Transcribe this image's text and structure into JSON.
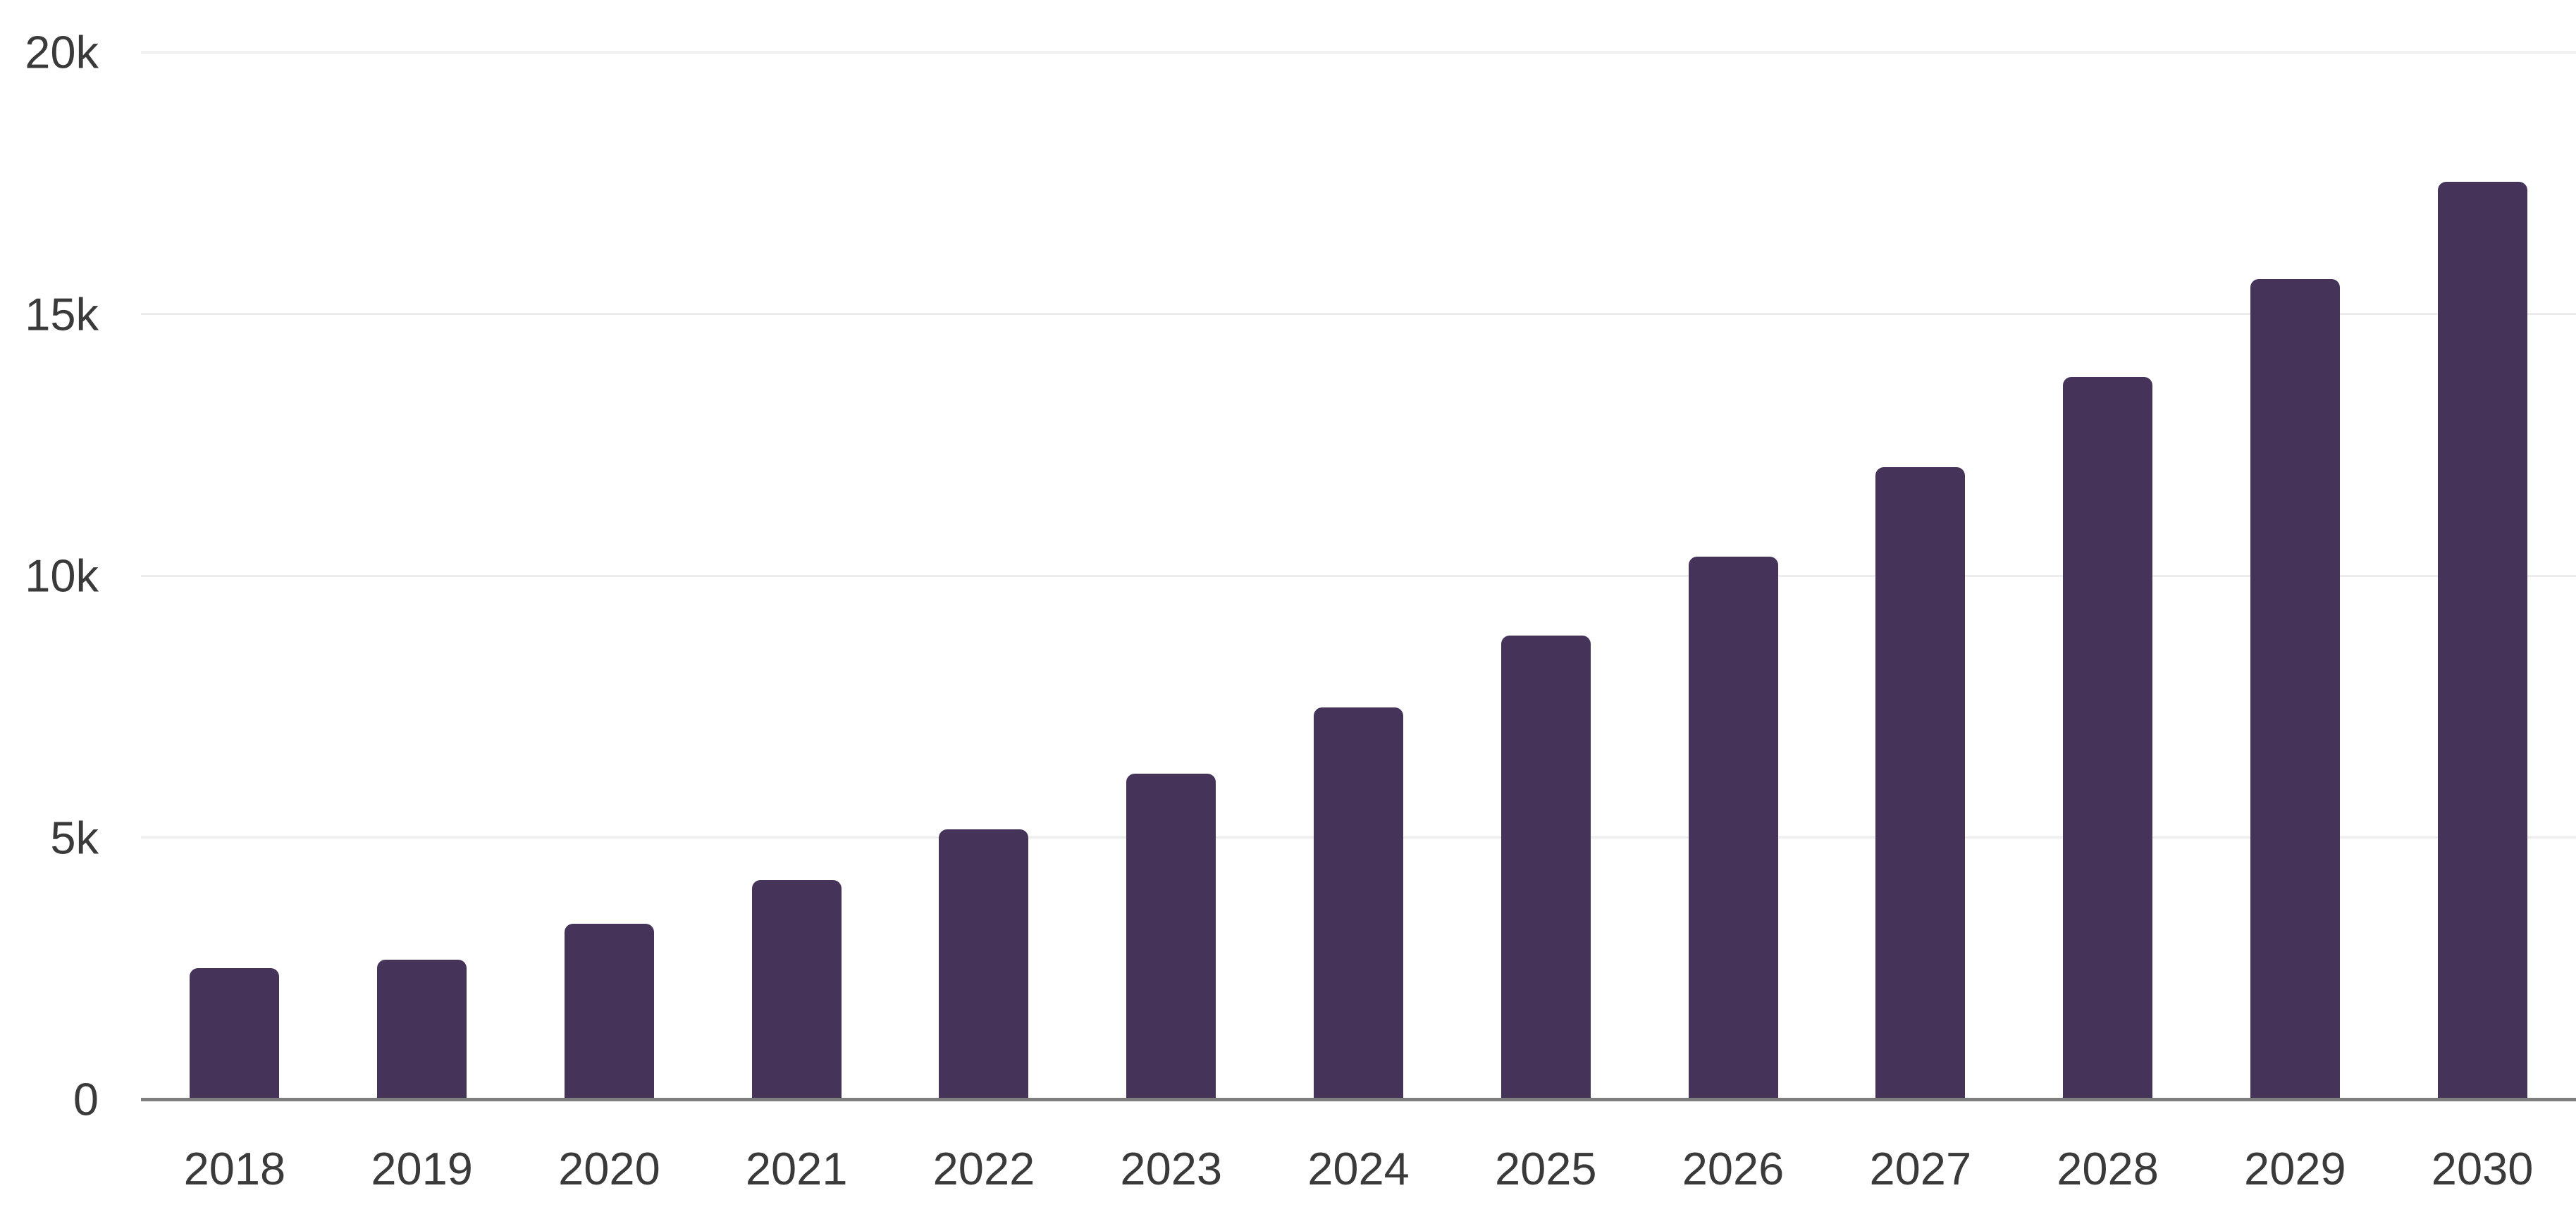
{
  "chart_data": {
    "type": "bar",
    "title": "",
    "xlabel": "",
    "ylabel": "",
    "categories": [
      "2018",
      "2019",
      "2020",
      "2021",
      "2022",
      "2023",
      "2024",
      "2025",
      "2026",
      "2027",
      "2028",
      "2029",
      "2030"
    ],
    "values": [
      2500,
      2670,
      3350,
      4180,
      5150,
      6220,
      7480,
      8850,
      10370,
      12070,
      13800,
      15660,
      17530
    ],
    "ylim": [
      0,
      20000
    ],
    "yticks": [
      {
        "value": 0,
        "label": "0"
      },
      {
        "value": 5000,
        "label": "5k"
      },
      {
        "value": 10000,
        "label": "10k"
      },
      {
        "value": 15000,
        "label": "15k"
      },
      {
        "value": 20000,
        "label": "20k"
      }
    ],
    "grid": true,
    "legend": "none",
    "colors": {
      "bar": "#463359",
      "axis_line": "#7e7e7e",
      "gridline": "#ededed",
      "tick_label": "#3a3a3a",
      "background": "#ffffff"
    }
  }
}
